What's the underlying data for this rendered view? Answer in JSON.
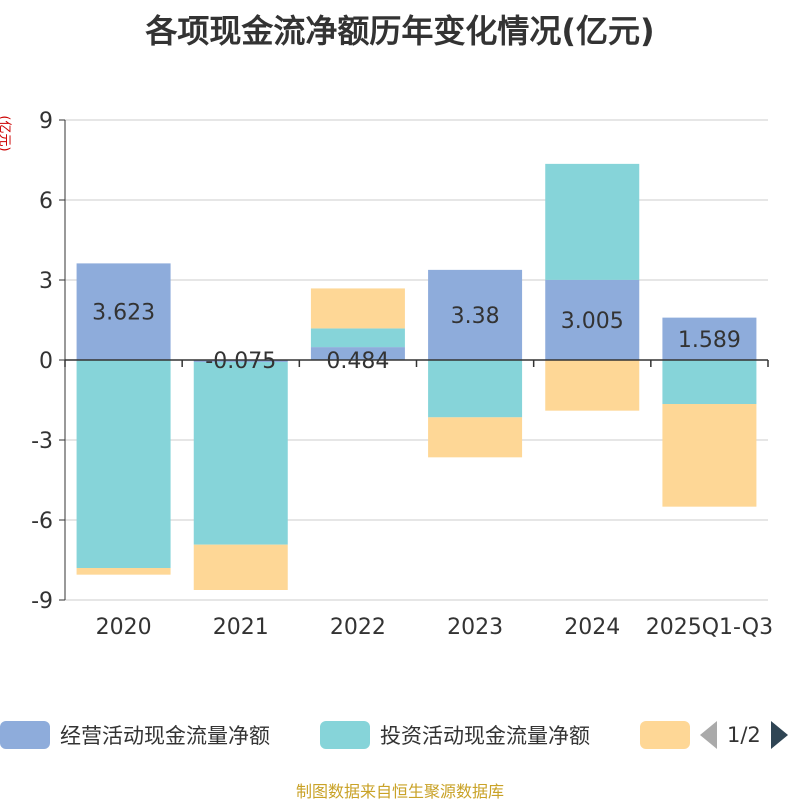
{
  "title": "各项现金流净额历年变化情况(亿元)",
  "unit_label": "(亿元)",
  "source": "制图数据来自恒生聚源数据库",
  "legend": {
    "pager": "1/2"
  },
  "colors": {
    "operating": "#8eacdb",
    "investing": "#86d4d9",
    "financing": "#fed796",
    "grid": "#cccccc",
    "axis": "#333333",
    "text": "#333333"
  },
  "chart_data": {
    "type": "bar",
    "stacked": true,
    "title": "各项现金流净额历年变化情况(亿元)",
    "ylabel": "(亿元)",
    "ylim": [
      -9,
      9
    ],
    "yticks": [
      -9,
      -6,
      -3,
      0,
      3,
      6,
      9
    ],
    "grid": true,
    "legend_position": "bottom",
    "categories": [
      "2020",
      "2021",
      "2022",
      "2023",
      "2024",
      "2025Q1-Q3"
    ],
    "series": [
      {
        "name": "经营活动现金流量净额",
        "color_key": "operating",
        "values": [
          3.623,
          -0.075,
          0.484,
          3.38,
          3.005,
          1.589
        ],
        "labels": [
          "3.623",
          "-0.075",
          "0.484",
          "3.38",
          "3.005",
          "1.589"
        ]
      },
      {
        "name": "投资活动现金流量净额",
        "color_key": "investing",
        "values": [
          -7.8,
          -6.85,
          0.7,
          -2.15,
          4.35,
          -1.65
        ]
      },
      {
        "name": "",
        "color_key": "financing",
        "values": [
          -0.25,
          -1.7,
          1.5,
          -1.5,
          -1.9,
          -3.85
        ]
      }
    ]
  }
}
